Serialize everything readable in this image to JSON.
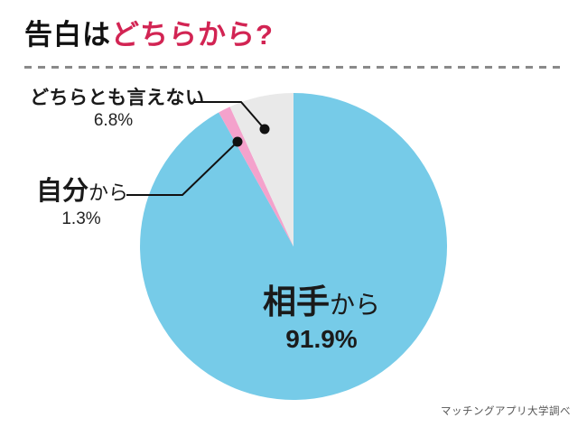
{
  "title": {
    "prefix": "告白は",
    "accent": "どちらから?"
  },
  "source": "マッチングアプリ大学調べ",
  "colors": {
    "accent": "#d22453",
    "line": "#111111",
    "divider": "#8a8a8a",
    "blue": "#76cbe8",
    "pink": "#f4a2cc",
    "gray": "#e9e9e9"
  },
  "chart_data": {
    "type": "pie",
    "title": "告白はどちらから?",
    "start_angle_deg": 0,
    "direction": "clockwise",
    "total": 100,
    "legend_position": "callout-labels",
    "slices": [
      {
        "id": "partner",
        "label": "相手から",
        "label_main": "相手",
        "label_suffix": "から",
        "value": 91.9,
        "pct_label": "91.9%",
        "color": "#76cbe8"
      },
      {
        "id": "self",
        "label": "自分から",
        "label_main": "自分",
        "label_suffix": "から",
        "value": 1.3,
        "pct_label": "1.3%",
        "color": "#f4a2cc"
      },
      {
        "id": "neither",
        "label": "どちらとも言えない",
        "label_main": "どちらとも言えない",
        "label_suffix": "",
        "value": 6.8,
        "pct_label": "6.8%",
        "color": "#e9e9e9"
      }
    ]
  }
}
